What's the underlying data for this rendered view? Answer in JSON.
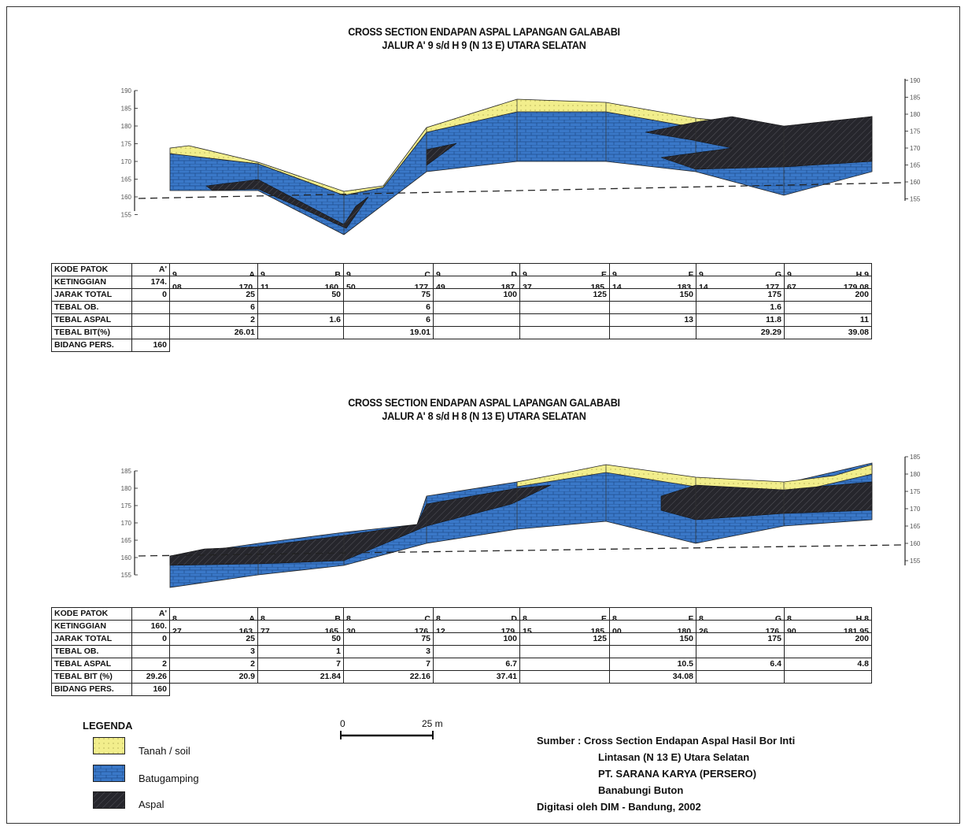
{
  "section1": {
    "title_line1": "CROSS SECTION ENDAPAN ASPAL LAPANGAN GALABABI",
    "title_line2": "JALUR  A' 9  s/d  H 9  (N 13 E)  UTARA SELATAN",
    "axis_ticks": [
      "190",
      "185",
      "180",
      "175",
      "170",
      "165",
      "160",
      "155"
    ],
    "table": {
      "header_labels": [
        "KODE PATOK",
        "KETINGGIAN",
        "JARAK TOTAL",
        "TEBAL OB.",
        "TEBAL ASPAL",
        "TEBAL BIT(%)",
        "BIDANG PERS."
      ],
      "kode": [
        "A'",
        "9",
        "A",
        "9",
        "B",
        "9",
        "C",
        "9",
        "D",
        "9",
        "E",
        "9",
        "F",
        "9",
        "G",
        "9",
        "H 9"
      ],
      "ketinggian": [
        "174.",
        "08",
        "170.",
        "11",
        "160.",
        "50",
        "177.",
        "49",
        "187.",
        "37",
        "185.",
        "14",
        "183.",
        "14",
        "177.",
        "67",
        "179.08"
      ],
      "jarak_total": [
        "0",
        "25",
        "50",
        "75",
        "100",
        "125",
        "150",
        "175",
        "200"
      ],
      "tebal_ob": [
        "",
        "6",
        "",
        "6",
        "",
        "",
        "",
        "1.6",
        ""
      ],
      "tebal_aspal": [
        "",
        "2",
        "1.6",
        "6",
        "",
        "",
        "13",
        "11.8",
        "11"
      ],
      "tebal_bit": [
        "",
        "26.01",
        "",
        "19.01",
        "",
        "",
        "",
        "29.29",
        "39.08"
      ],
      "bidang_pers": [
        "160"
      ]
    }
  },
  "section2": {
    "title_line1": "CROSS SECTION ENDAPAN ASPAL LAPANGAN GALABABI",
    "title_line2": "JALUR  A' 8  s/d  H 8  (N 13 E)  UTARA SELATAN",
    "axis_ticks": [
      "185",
      "180",
      "175",
      "170",
      "165",
      "160",
      "155"
    ],
    "table": {
      "header_labels": [
        "KODE PATOK",
        "KETINGGIAN",
        "JARAK TOTAL",
        "TEBAL OB.",
        "TEBAL ASPAL",
        "TEBAL BIT (%)",
        "BIDANG PERS."
      ],
      "kode": [
        "A'",
        "8",
        "A",
        "8",
        "B",
        "8",
        "C",
        "8",
        "D",
        "8",
        "E",
        "8",
        "F",
        "8",
        "G",
        "8",
        "H 8"
      ],
      "ketinggian": [
        "160.",
        "27",
        "163.",
        "77",
        "165.",
        "30",
        "176.",
        "12",
        "179.",
        "15",
        "185.",
        "00",
        "180.",
        "26",
        "176.",
        "90",
        "181.95"
      ],
      "jarak_total": [
        "0",
        "25",
        "50",
        "75",
        "100",
        "125",
        "150",
        "175",
        "200"
      ],
      "tebal_ob": [
        "",
        "3",
        "1",
        "3",
        "",
        "",
        "",
        "",
        ""
      ],
      "tebal_aspal": [
        "2",
        "2",
        "7",
        "7",
        "6.7",
        "",
        "10.5",
        "6.4",
        "4.8"
      ],
      "tebal_bit": [
        "29.26",
        "20.9",
        "21.84",
        "22.16",
        "37.41",
        "",
        "34.08",
        "",
        ""
      ],
      "bidang_pers": [
        "160"
      ]
    }
  },
  "legend": {
    "title": "LEGENDA",
    "items": [
      {
        "label": "Tanah / soil",
        "color": "#f2ee8c",
        "icon": "soil-swatch"
      },
      {
        "label": "Batugamping",
        "color": "#3a78c8",
        "icon": "limestone-swatch"
      },
      {
        "label": "Aspal",
        "color": "#2a2a30",
        "icon": "asphalt-swatch"
      }
    ]
  },
  "scale": {
    "start": "0",
    "end": "25 m"
  },
  "source": {
    "line1": "Sumber : Cross Section Endapan Aspal Hasil Bor Inti",
    "line2": "Lintasan (N 13 E) Utara Selatan",
    "line3": "PT. SARANA KARYA (PERSERO)",
    "line4": "Banabungi Buton",
    "line5": "Digitasi oleh DIM - Bandung, 2002"
  },
  "colors": {
    "soil": "#f2ee8c",
    "limestone": "#3a78c8",
    "asphalt": "#26262c"
  }
}
